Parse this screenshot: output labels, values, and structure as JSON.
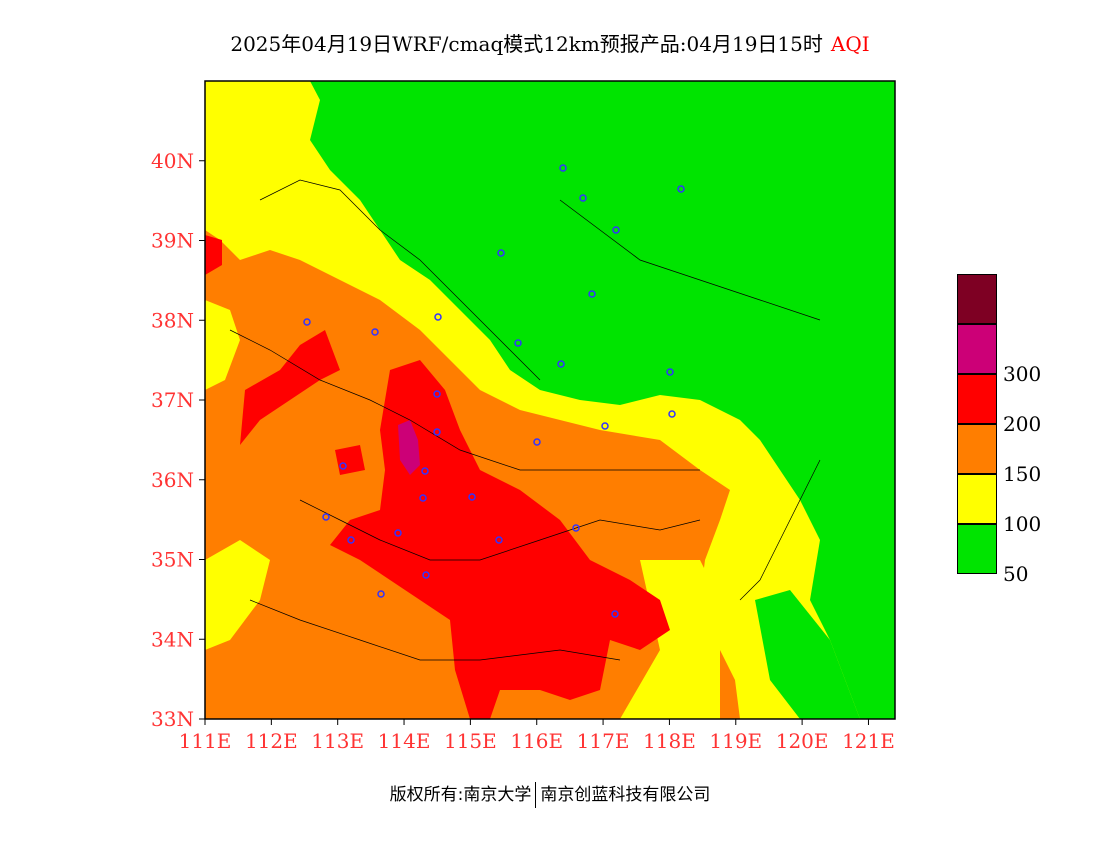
{
  "title": {
    "main": "2025年04月19日WRF/cmaq模式12km预报产品:04月19日15时",
    "product": "AQI"
  },
  "map": {
    "lat_labels": [
      "40N",
      "39N",
      "38N",
      "37N",
      "36N",
      "35N",
      "34N",
      "33N"
    ],
    "lon_labels": [
      "111E",
      "112E",
      "113E",
      "114E",
      "115E",
      "116E",
      "117E",
      "118E",
      "119E",
      "120E",
      "121E"
    ],
    "lat_range": [
      33,
      41
    ],
    "lon_range": [
      111,
      121.4
    ],
    "label_color": "#ff3333"
  },
  "legend": {
    "levels": [
      {
        "color": "#7e0023",
        "label": ""
      },
      {
        "color": "#cc0077",
        "label": "300"
      },
      {
        "color": "#ff0000",
        "label": "200"
      },
      {
        "color": "#ff7e00",
        "label": "150"
      },
      {
        "color": "#ffff00",
        "label": "100"
      },
      {
        "color": "#00e400",
        "label": "50"
      }
    ]
  },
  "footer": {
    "left": "版权所有:南京大学",
    "right": "南京创蓝科技有限公司"
  }
}
